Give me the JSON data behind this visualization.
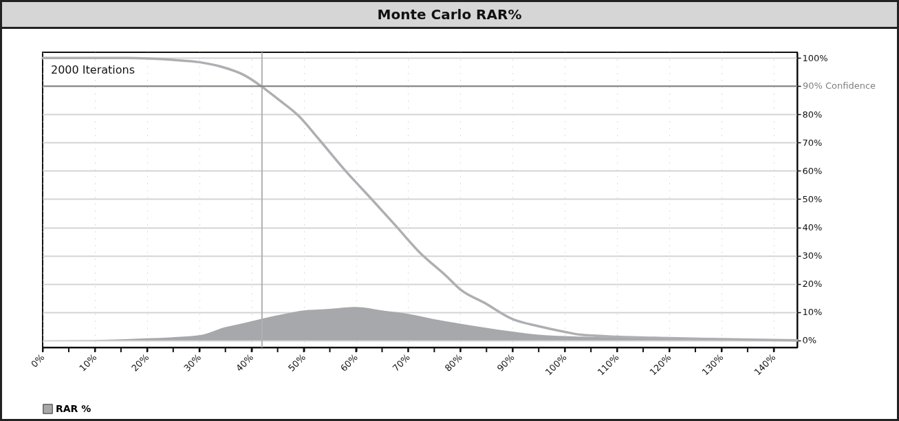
{
  "chart_data": {
    "type": "area",
    "title": "Monte Carlo RAR%",
    "series": [
      {
        "name": "RAR %",
        "color": "#a7a8ab",
        "x": [
          0,
          10,
          20,
          25,
          30,
          35,
          38,
          42,
          47,
          50,
          54,
          60,
          65,
          70,
          75,
          79,
          90,
          95,
          100,
          110,
          120,
          130,
          140,
          144.5
        ],
        "values": [
          0,
          0.1,
          0.7,
          1.1,
          1.8,
          4.7,
          5.9,
          7.7,
          9.6,
          10.6,
          11,
          11.8,
          10.6,
          9.4,
          7.5,
          6.2,
          3.1,
          2,
          1.5,
          1,
          0.7,
          0.4,
          0.2,
          0.1
        ]
      },
      {
        "type": "line",
        "color": "#aeafb2",
        "x": [
          0,
          16,
          25,
          30,
          34,
          38.7,
          42,
          45,
          49,
          53,
          58,
          63,
          67.7,
          72,
          77.4,
          80,
          84.6,
          90,
          95,
          100,
          103,
          110,
          120,
          130,
          140,
          144.5
        ],
        "values": [
          100,
          100,
          99.3,
          98.5,
          97,
          93.8,
          89.8,
          85.5,
          79.5,
          71,
          60,
          50,
          40.4,
          31.5,
          22.6,
          18,
          13.3,
          7.5,
          5,
          3,
          2,
          1.3,
          0.8,
          0.4,
          0.1,
          0
        ]
      }
    ],
    "xlim": [
      0,
      144.5
    ],
    "ylim": [
      -2.5,
      102
    ],
    "xticks": [
      {
        "value": 0,
        "label": "0%"
      },
      {
        "value": 5,
        "label": null
      },
      {
        "value": 10,
        "label": "10%"
      },
      {
        "value": 15,
        "label": null
      },
      {
        "value": 20,
        "label": "20%"
      },
      {
        "value": 25,
        "label": null
      },
      {
        "value": 30,
        "label": "30%"
      },
      {
        "value": 35,
        "label": null
      },
      {
        "value": 40,
        "label": "40%"
      },
      {
        "value": 45,
        "label": null
      },
      {
        "value": 50,
        "label": "50%"
      },
      {
        "value": 55,
        "label": null
      },
      {
        "value": 60,
        "label": "60%"
      },
      {
        "value": 65,
        "label": null
      },
      {
        "value": 70,
        "label": "70%"
      },
      {
        "value": 75,
        "label": null
      },
      {
        "value": 80,
        "label": "80%"
      },
      {
        "value": 85,
        "label": null
      },
      {
        "value": 90,
        "label": "90%"
      },
      {
        "value": 95,
        "label": null
      },
      {
        "value": 100,
        "label": "100%"
      },
      {
        "value": 105,
        "label": null
      },
      {
        "value": 110,
        "label": "110%"
      },
      {
        "value": 115,
        "label": null
      },
      {
        "value": 120,
        "label": "120%"
      },
      {
        "value": 125,
        "label": null
      },
      {
        "value": 130,
        "label": "130%"
      },
      {
        "value": 135,
        "label": null
      },
      {
        "value": 140,
        "label": "140%"
      }
    ],
    "yticks": [
      {
        "value": 0,
        "label": "0%"
      },
      {
        "value": 10,
        "label": "10%"
      },
      {
        "value": 20,
        "label": "20%"
      },
      {
        "value": 30,
        "label": "30%"
      },
      {
        "value": 40,
        "label": "40%"
      },
      {
        "value": 50,
        "label": "50%"
      },
      {
        "value": 60,
        "label": "60%"
      },
      {
        "value": 70,
        "label": "70%"
      },
      {
        "value": 80,
        "label": "80%"
      },
      {
        "value": 90,
        "label": null
      },
      {
        "value": 100,
        "label": "100%"
      }
    ],
    "ref_lines": [
      {
        "axis": "x",
        "value": 42,
        "color": "#b0b0b0"
      },
      {
        "axis": "y",
        "value": 90,
        "label": "90% Confidence",
        "color": "#808080"
      }
    ],
    "annotations": [
      "2000 Iterations"
    ],
    "grid": true,
    "legend": "bottom"
  }
}
